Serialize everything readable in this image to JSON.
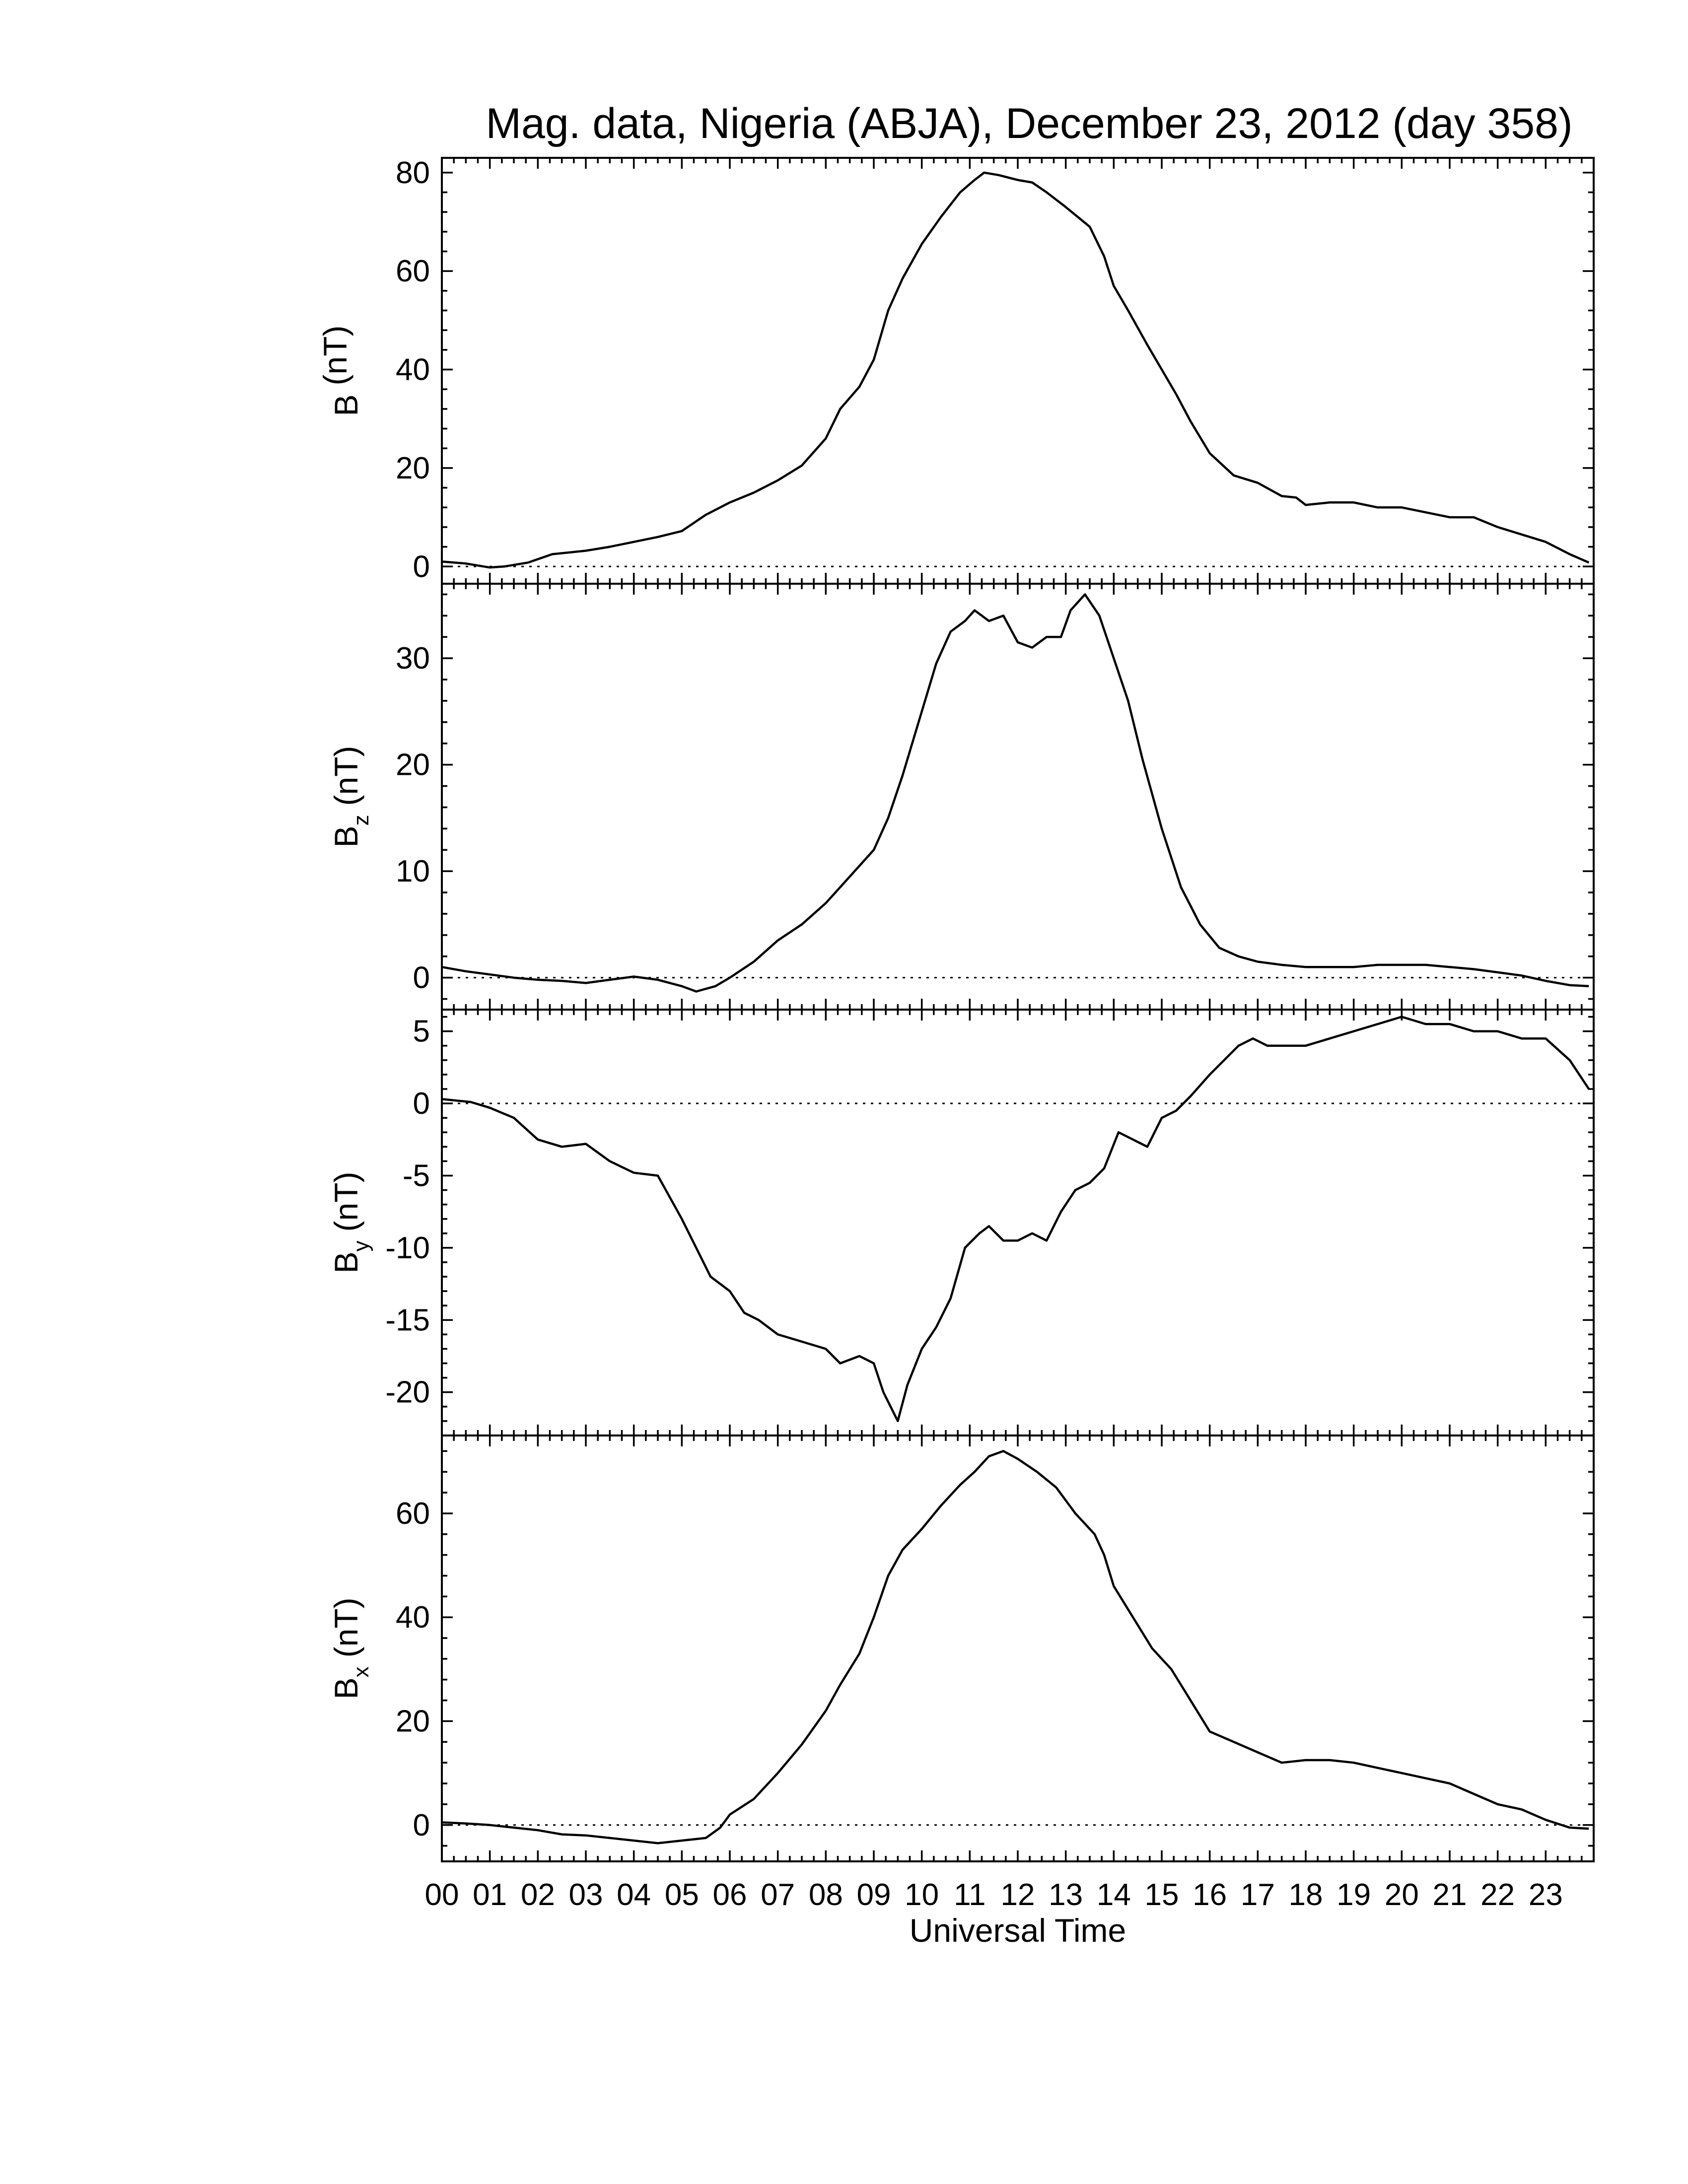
{
  "chart_data": {
    "type": "line",
    "title": "Mag. data, Nigeria (ABJA), December 23, 2012 (day 358)",
    "xlabel": "Universal Time",
    "xlim": [
      0,
      24
    ],
    "x_tick_labels": [
      "00",
      "01",
      "02",
      "03",
      "04",
      "05",
      "06",
      "07",
      "08",
      "09",
      "10",
      "11",
      "12",
      "13",
      "14",
      "15",
      "16",
      "17",
      "18",
      "19",
      "20",
      "21",
      "22",
      "23"
    ],
    "panels": [
      {
        "ylabel": "B (nT)",
        "ylabel_base": "B",
        "ylabel_sub": "",
        "ylabel_unit": "(nT)",
        "ylim": [
          -3.5,
          83
        ],
        "yticks": [
          0,
          20,
          40,
          60,
          80
        ],
        "zero_line": true,
        "series": [
          {
            "x": [
              0,
              0.5,
              1.0,
              1.3,
              1.8,
              2.3,
              3.0,
              3.5,
              4.0,
              4.5,
              5.0,
              5.5,
              6.0,
              6.5,
              7.0,
              7.5,
              8.0,
              8.3,
              8.7,
              9.0,
              9.3,
              9.6,
              10.0,
              10.4,
              10.8,
              11.1,
              11.3,
              11.6,
              12.0,
              12.3,
              12.6,
              13.0,
              13.5,
              13.8,
              14.0,
              14.3,
              14.7,
              15.0,
              15.3,
              15.6,
              16.0,
              16.5,
              17.0,
              17.5,
              17.8,
              18.0,
              18.5,
              19.0,
              19.5,
              20.0,
              20.5,
              21.0,
              21.5,
              22.0,
              22.5,
              23.0,
              23.5,
              23.9
            ],
            "y": [
              1,
              0.6,
              -0.2,
              0,
              0.8,
              2.5,
              3.2,
              4.0,
              5.0,
              6.0,
              7.2,
              10.5,
              13.0,
              15.0,
              17.5,
              20.5,
              26.0,
              32.0,
              36.5,
              42.0,
              52.0,
              58.5,
              65.5,
              71.0,
              76.0,
              78.5,
              80.0,
              79.5,
              78.5,
              78.0,
              76.0,
              73.0,
              69.0,
              63.0,
              57.0,
              52.0,
              45.0,
              40.0,
              35.0,
              29.5,
              23.0,
              18.5,
              17.0,
              14.3,
              14.0,
              12.5,
              13.0,
              13.0,
              12.0,
              12.0,
              11.0,
              10.0,
              10.0,
              8.0,
              6.5,
              5.0,
              2.5,
              0.8
            ]
          }
        ]
      },
      {
        "ylabel": "Bz (nT)",
        "ylabel_base": "B",
        "ylabel_sub": "z",
        "ylabel_unit": "(nT)",
        "ylim": [
          -3,
          37
        ],
        "yticks": [
          0,
          10,
          20,
          30
        ],
        "zero_line": true,
        "series": [
          {
            "x": [
              0,
              0.5,
              1.0,
              1.5,
              2.0,
              2.5,
              3.0,
              3.5,
              4.0,
              4.5,
              5.0,
              5.3,
              5.7,
              6.0,
              6.5,
              7.0,
              7.5,
              8.0,
              8.5,
              9.0,
              9.3,
              9.6,
              10.0,
              10.3,
              10.6,
              10.9,
              11.1,
              11.4,
              11.7,
              12.0,
              12.3,
              12.6,
              12.9,
              13.1,
              13.4,
              13.7,
              14.0,
              14.3,
              14.6,
              15.0,
              15.4,
              15.8,
              16.2,
              16.6,
              17.0,
              17.5,
              18.0,
              18.5,
              19.0,
              19.5,
              20.0,
              20.5,
              21.0,
              21.5,
              22.0,
              22.5,
              23.0,
              23.5,
              23.9
            ],
            "y": [
              1.0,
              0.6,
              0.3,
              0,
              -0.2,
              -0.3,
              -0.5,
              -0.2,
              0.1,
              -0.2,
              -0.8,
              -1.3,
              -0.8,
              0,
              1.5,
              3.5,
              5.0,
              7.0,
              9.5,
              12.0,
              15.0,
              19.0,
              25.0,
              29.5,
              32.5,
              33.5,
              34.5,
              33.5,
              34.0,
              31.5,
              31.0,
              32.0,
              32.0,
              34.5,
              36.0,
              34.0,
              30.0,
              26.0,
              20.5,
              14.0,
              8.5,
              5.0,
              2.8,
              2.0,
              1.5,
              1.2,
              1.0,
              1.0,
              1.0,
              1.2,
              1.2,
              1.2,
              1.0,
              0.8,
              0.5,
              0.2,
              -0.3,
              -0.7,
              -0.8
            ]
          }
        ]
      },
      {
        "ylabel": "By (nT)",
        "ylabel_base": "B",
        "ylabel_sub": "y",
        "ylabel_unit": "(nT)",
        "ylim": [
          -23,
          6.5
        ],
        "yticks": [
          5,
          0,
          -5,
          -10,
          -15,
          -20
        ],
        "zero_line": true,
        "series": [
          {
            "x": [
              0,
              0.3,
              0.6,
              1.0,
              1.5,
              2.0,
              2.5,
              3.0,
              3.5,
              4.0,
              4.5,
              5.0,
              5.3,
              5.6,
              6.0,
              6.3,
              6.6,
              7.0,
              7.5,
              8.0,
              8.3,
              8.7,
              9.0,
              9.2,
              9.5,
              9.7,
              10.0,
              10.3,
              10.6,
              10.9,
              11.2,
              11.4,
              11.7,
              12.0,
              12.3,
              12.6,
              12.9,
              13.2,
              13.5,
              13.8,
              14.1,
              14.4,
              14.7,
              15.0,
              15.3,
              15.6,
              16.0,
              16.3,
              16.6,
              16.9,
              17.2,
              17.5,
              18.0,
              18.5,
              19.0,
              19.5,
              20.0,
              20.5,
              21.0,
              21.5,
              22.0,
              22.5,
              23.0,
              23.5,
              23.9
            ],
            "y": [
              0.3,
              0.2,
              0.1,
              -0.3,
              -1.0,
              -2.5,
              -3.0,
              -2.8,
              -4.0,
              -4.8,
              -5.0,
              -8.0,
              -10.0,
              -12.0,
              -13.0,
              -14.5,
              -15.0,
              -16.0,
              -16.5,
              -17.0,
              -18.0,
              -17.5,
              -18.0,
              -20.0,
              -22.0,
              -19.5,
              -17.0,
              -15.5,
              -13.5,
              -10.0,
              -9.0,
              -8.5,
              -9.5,
              -9.5,
              -9.0,
              -9.5,
              -7.5,
              -6.0,
              -5.5,
              -4.5,
              -2.0,
              -2.5,
              -3.0,
              -1.0,
              -0.5,
              0.5,
              2.0,
              3.0,
              4.0,
              4.5,
              4.0,
              4.0,
              4.0,
              4.5,
              5.0,
              5.5,
              6.0,
              5.5,
              5.5,
              5.0,
              5.0,
              4.5,
              4.5,
              3.0,
              1.0
            ]
          }
        ]
      },
      {
        "ylabel": "Bx (nT)",
        "ylabel_base": "B",
        "ylabel_sub": "x",
        "ylabel_unit": "(nT)",
        "ylim": [
          -7,
          75
        ],
        "yticks": [
          0,
          20,
          40,
          60
        ],
        "zero_line": true,
        "series": [
          {
            "x": [
              0,
              0.5,
              1.0,
              1.5,
              2.0,
              2.5,
              3.0,
              3.5,
              4.0,
              4.5,
              5.0,
              5.5,
              5.8,
              6.0,
              6.5,
              7.0,
              7.5,
              8.0,
              8.3,
              8.7,
              9.0,
              9.3,
              9.6,
              10.0,
              10.4,
              10.8,
              11.1,
              11.4,
              11.7,
              12.0,
              12.4,
              12.8,
              13.2,
              13.6,
              13.8,
              14.0,
              14.4,
              14.8,
              15.2,
              15.6,
              16.0,
              16.5,
              17.0,
              17.5,
              18.0,
              18.5,
              19.0,
              19.5,
              20.0,
              20.5,
              21.0,
              21.5,
              22.0,
              22.5,
              23.0,
              23.5,
              23.9
            ],
            "y": [
              0.5,
              0.3,
              0,
              -0.5,
              -1.0,
              -1.8,
              -2.0,
              -2.5,
              -3.0,
              -3.5,
              -3.0,
              -2.5,
              -0.5,
              2.0,
              5.0,
              10.0,
              15.5,
              22.0,
              27.0,
              33.0,
              40.0,
              48.0,
              53.0,
              57.0,
              61.5,
              65.5,
              68.0,
              71.0,
              72.0,
              70.5,
              68.0,
              65.0,
              60.0,
              56.0,
              52.0,
              46.0,
              40.0,
              34.0,
              30.0,
              24.0,
              18.0,
              16.0,
              14.0,
              12.0,
              12.5,
              12.5,
              12.0,
              11.0,
              10.0,
              9.0,
              8.0,
              6.0,
              4.0,
              3.0,
              1.0,
              -0.5,
              -0.7
            ]
          }
        ]
      }
    ]
  }
}
